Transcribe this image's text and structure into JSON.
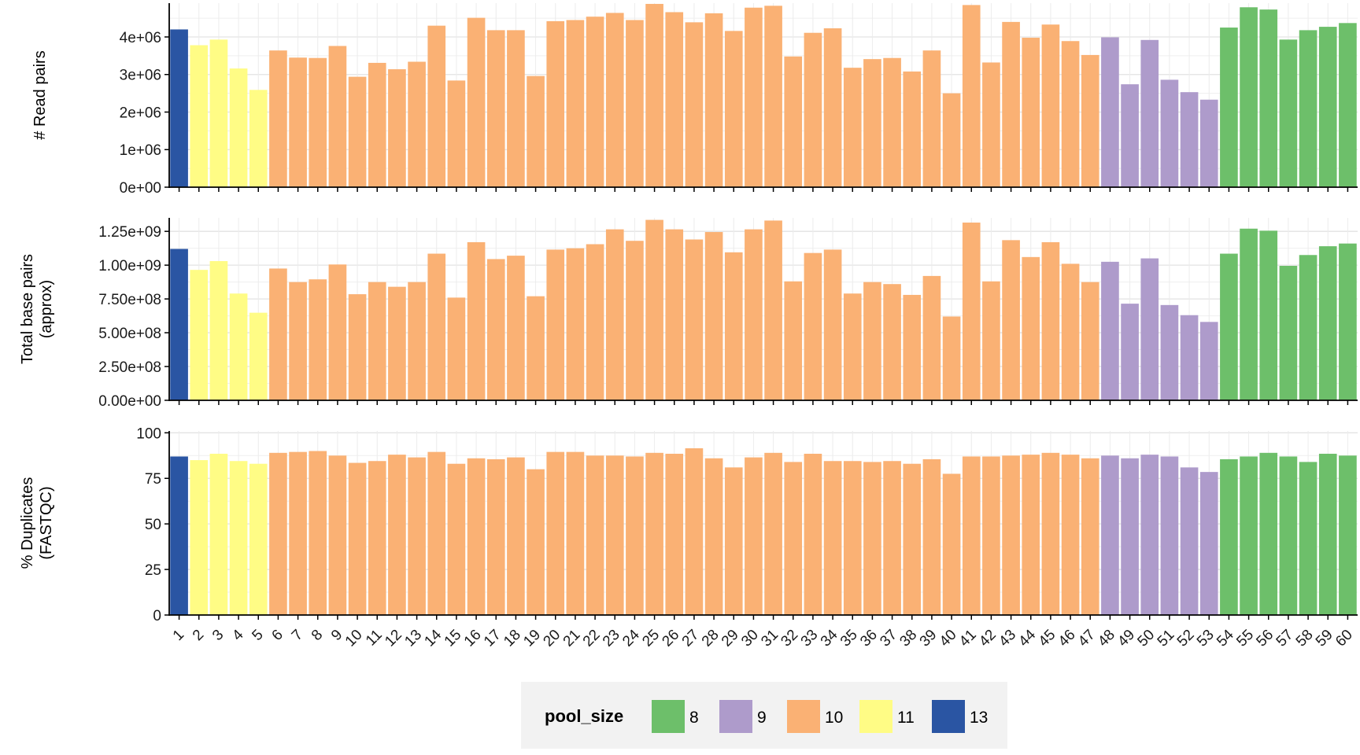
{
  "chart_data": [
    {
      "type": "bar",
      "ylabel": [
        "# Read pairs"
      ],
      "ylim": [
        0,
        4900000
      ],
      "y_ticks": [
        0,
        1000000,
        2000000,
        3000000,
        4000000
      ],
      "y_tick_labels": [
        "0e+00",
        "1e+06",
        "2e+06",
        "3e+06",
        "4e+06"
      ],
      "values": [
        4200000,
        3780000,
        3930000,
        3160000,
        2590000,
        3640000,
        3450000,
        3440000,
        3760000,
        2940000,
        3310000,
        3140000,
        3340000,
        4300000,
        2840000,
        4510000,
        4180000,
        4180000,
        2960000,
        4420000,
        4450000,
        4540000,
        4640000,
        4450000,
        4880000,
        4660000,
        4390000,
        4630000,
        4160000,
        4780000,
        4830000,
        3480000,
        4110000,
        4230000,
        3180000,
        3410000,
        3440000,
        3080000,
        3640000,
        2500000,
        4850000,
        3320000,
        4400000,
        3980000,
        4330000,
        3890000,
        3520000,
        3990000,
        2740000,
        3920000,
        2860000,
        2530000,
        2330000,
        4250000,
        4790000,
        4730000,
        3930000,
        4180000,
        4270000,
        4370000
      ]
    },
    {
      "type": "bar",
      "ylabel": [
        "Total base pairs",
        "(approx)"
      ],
      "ylim": [
        0,
        1350000000
      ],
      "y_ticks": [
        0,
        250000000,
        500000000,
        750000000,
        1000000000,
        1250000000
      ],
      "y_tick_labels": [
        "0.00e+00",
        "2.50e+08",
        "5.00e+08",
        "7.50e+08",
        "1.00e+09",
        "1.25e+09"
      ],
      "values": [
        1120000000,
        965000000,
        1030000000,
        790000000,
        648000000,
        975000000,
        875000000,
        895000000,
        1005000000,
        785000000,
        875000000,
        840000000,
        875000000,
        1085000000,
        760000000,
        1170000000,
        1045000000,
        1070000000,
        770000000,
        1115000000,
        1125000000,
        1155000000,
        1265000000,
        1180000000,
        1335000000,
        1265000000,
        1190000000,
        1245000000,
        1095000000,
        1265000000,
        1330000000,
        880000000,
        1090000000,
        1115000000,
        790000000,
        875000000,
        860000000,
        780000000,
        920000000,
        620000000,
        1315000000,
        880000000,
        1185000000,
        1060000000,
        1170000000,
        1010000000,
        875000000,
        1025000000,
        715000000,
        1050000000,
        705000000,
        630000000,
        580000000,
        1085000000,
        1270000000,
        1255000000,
        995000000,
        1075000000,
        1140000000,
        1160000000
      ]
    },
    {
      "type": "bar",
      "ylabel": [
        "% Duplicates",
        "(FASTQC)"
      ],
      "ylim": [
        0,
        101
      ],
      "y_ticks": [
        0,
        25,
        50,
        75,
        100
      ],
      "y_tick_labels": [
        "0",
        "25",
        "50",
        "75",
        "100"
      ],
      "values": [
        87,
        85,
        88.5,
        84.5,
        83,
        89,
        89.5,
        90,
        87.5,
        83.5,
        84.5,
        88,
        86.5,
        89.5,
        83,
        86,
        85.5,
        86.5,
        80,
        89.5,
        89.5,
        87.5,
        87.5,
        87,
        89,
        88.5,
        91.5,
        86,
        81,
        86.5,
        89,
        84,
        88.5,
        84.5,
        84.5,
        84,
        84.5,
        83,
        85.5,
        77.5,
        87,
        87,
        87.5,
        88,
        89,
        88,
        86,
        87.5,
        86,
        88,
        87,
        81,
        78.5,
        85.5,
        87,
        89,
        87,
        84,
        88.5,
        87.5
      ]
    }
  ],
  "x_categories": [
    "1",
    "2",
    "3",
    "4",
    "5",
    "6",
    "7",
    "8",
    "9",
    "10",
    "11",
    "12",
    "13",
    "14",
    "15",
    "16",
    "17",
    "18",
    "19",
    "20",
    "21",
    "22",
    "23",
    "24",
    "25",
    "26",
    "27",
    "28",
    "29",
    "30",
    "31",
    "32",
    "33",
    "34",
    "35",
    "36",
    "37",
    "38",
    "39",
    "40",
    "41",
    "42",
    "43",
    "44",
    "45",
    "46",
    "47",
    "48",
    "49",
    "50",
    "51",
    "52",
    "53",
    "54",
    "55",
    "56",
    "57",
    "58",
    "59",
    "60"
  ],
  "pool_size": [
    13,
    11,
    11,
    11,
    11,
    10,
    10,
    10,
    10,
    10,
    10,
    10,
    10,
    10,
    10,
    10,
    10,
    10,
    10,
    10,
    10,
    10,
    10,
    10,
    10,
    10,
    10,
    10,
    10,
    10,
    10,
    10,
    10,
    10,
    10,
    10,
    10,
    10,
    10,
    10,
    10,
    10,
    10,
    10,
    10,
    10,
    10,
    9,
    9,
    9,
    9,
    9,
    9,
    8,
    8,
    8,
    8,
    8,
    8,
    8
  ],
  "colors": {
    "8": "#6dbf6a",
    "9": "#ae9bcb",
    "10": "#fab174",
    "11": "#fffc85",
    "13": "#2a55a3"
  },
  "legend": {
    "title": "pool_size",
    "items": [
      {
        "label": "8",
        "key": "8"
      },
      {
        "label": "9",
        "key": "9"
      },
      {
        "label": "10",
        "key": "10"
      },
      {
        "label": "11",
        "key": "11"
      },
      {
        "label": "13",
        "key": "13"
      }
    ]
  }
}
